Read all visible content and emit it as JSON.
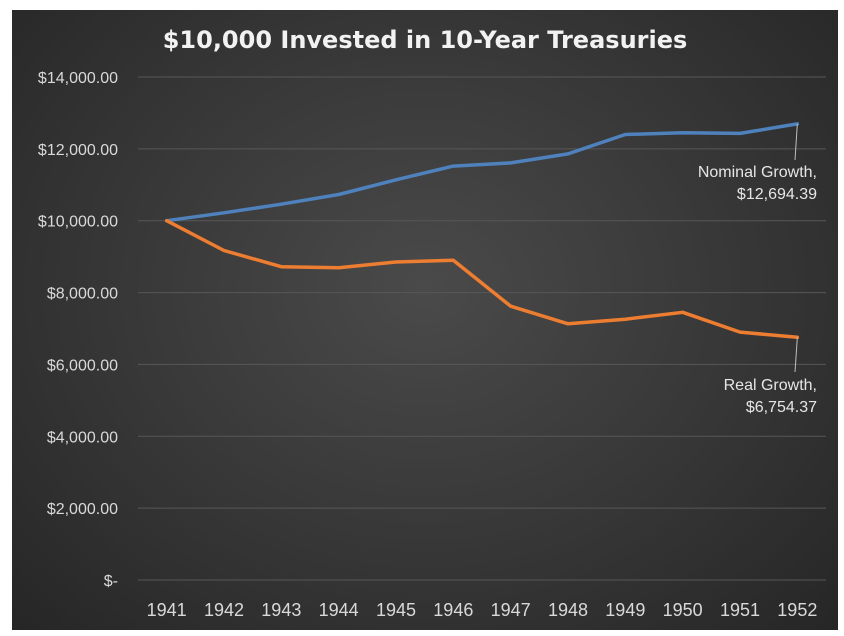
{
  "chart_data": {
    "type": "line",
    "title": "$10,000 Invested in 10-Year Treasuries",
    "xlabel": "",
    "ylabel": "",
    "x": [
      "1941",
      "1942",
      "1943",
      "1944",
      "1945",
      "1946",
      "1947",
      "1948",
      "1949",
      "1950",
      "1951",
      "1952"
    ],
    "ylim": [
      0,
      14000
    ],
    "yticks": [
      0,
      2000,
      4000,
      6000,
      8000,
      10000,
      12000,
      14000
    ],
    "ytick_labels": [
      "$-",
      "$2,000.00",
      "$4,000.00",
      "$6,000.00",
      "$8,000.00",
      "$10,000.00",
      "$12,000.00",
      "$14,000.00"
    ],
    "grid": true,
    "legend": "none",
    "series": [
      {
        "color": "#4f81bd",
        "values": [
          10000,
          10220,
          10460,
          10730,
          11140,
          11520,
          11610,
          11860,
          12400,
          12450,
          12430,
          12694.39
        ]
      },
      {
        "color": "#ed7d31",
        "values": [
          10000,
          9170,
          8720,
          8690,
          8850,
          8900,
          7620,
          7130,
          7260,
          7450,
          6900,
          6754.37
        ]
      }
    ],
    "annotations": [
      {
        "series": 0,
        "lines": [
          "Nominal Growth,",
          "$12,694.39"
        ]
      },
      {
        "series": 1,
        "lines": [
          "Real Growth,",
          "$6,754.37"
        ]
      }
    ]
  }
}
